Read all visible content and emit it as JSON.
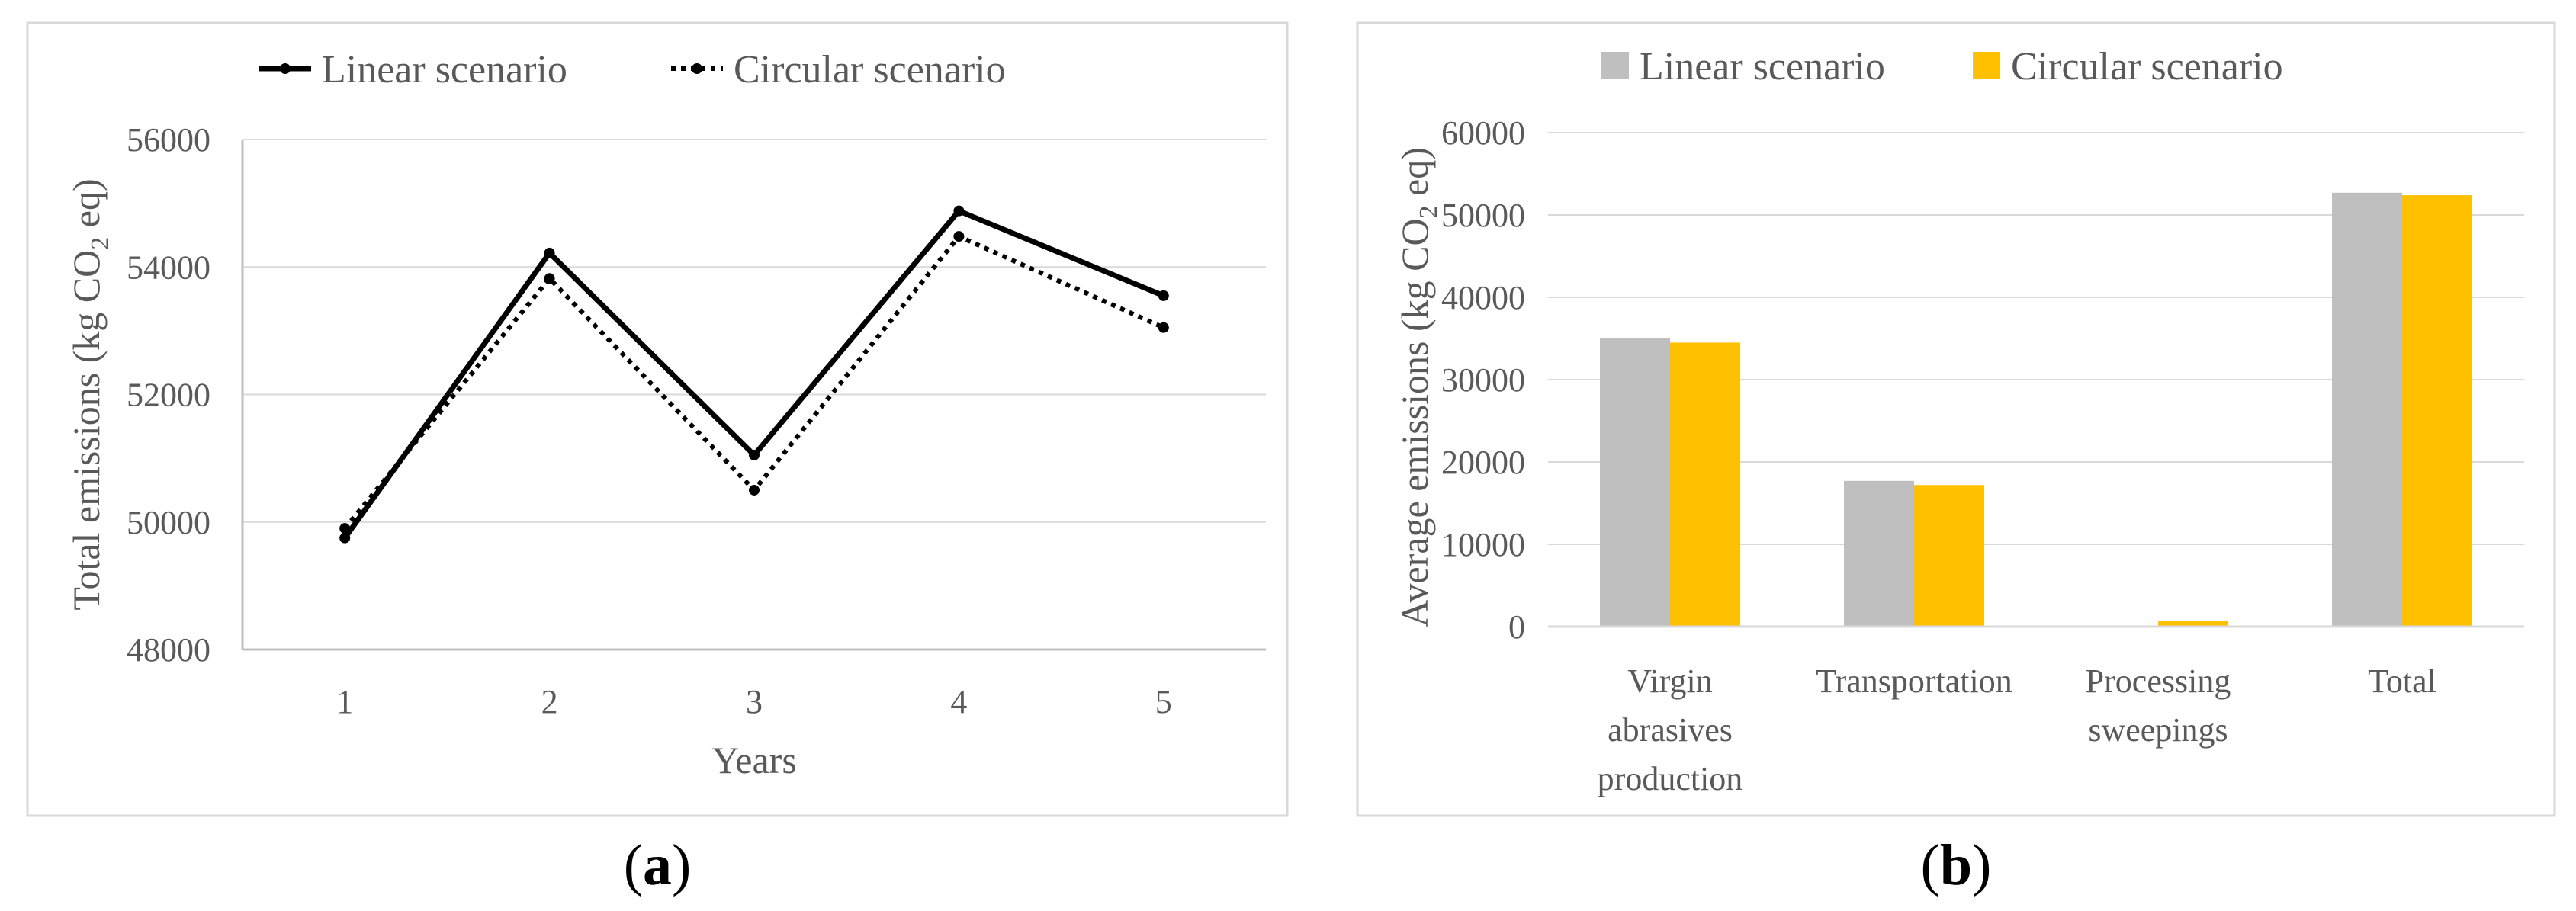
{
  "chart_data": [
    {
      "panel": "(a)",
      "panel_parts": {
        "open": "(",
        "letter": "a",
        "close": ")"
      },
      "type": "line",
      "title": "",
      "xlabel": "Years",
      "ylabel": {
        "main": "Total emissions  (kg CO",
        "sub": "2",
        "tail": " eq)"
      },
      "categories": [
        "1",
        "2",
        "3",
        "4",
        "5"
      ],
      "ylim": [
        48000,
        56000
      ],
      "yticks": [
        48000,
        50000,
        52000,
        54000,
        56000
      ],
      "grid": true,
      "legend_position": "top",
      "series": [
        {
          "name": "Linear scenario",
          "style": "solid",
          "values": [
            49750,
            54220,
            51050,
            54880,
            53550
          ]
        },
        {
          "name": "Circular scenario",
          "style": "dotted",
          "values": [
            49900,
            53820,
            50500,
            54480,
            53050
          ]
        }
      ]
    },
    {
      "panel": "(b)",
      "panel_parts": {
        "open": "(",
        "letter": "b",
        "close": ")"
      },
      "type": "bar",
      "title": "",
      "xlabel": "",
      "ylabel": {
        "main": "Average emissions  (kg CO",
        "sub": "2",
        "tail": " eq)"
      },
      "categories": [
        [
          "Virgin",
          "abrasives",
          "production"
        ],
        [
          "Transportation"
        ],
        [
          "Processing",
          "sweepings"
        ],
        [
          "Total"
        ]
      ],
      "ylim": [
        0,
        60000
      ],
      "yticks": [
        0,
        10000,
        20000,
        30000,
        40000,
        50000,
        60000
      ],
      "grid": true,
      "legend_position": "top",
      "series": [
        {
          "name": "Linear scenario",
          "color": "#bfbfbf",
          "values": [
            35000,
            17700,
            0,
            52700
          ]
        },
        {
          "name": "Circular scenario",
          "color": "#ffc000",
          "values": [
            34500,
            17200,
            700,
            52400
          ]
        }
      ]
    }
  ]
}
